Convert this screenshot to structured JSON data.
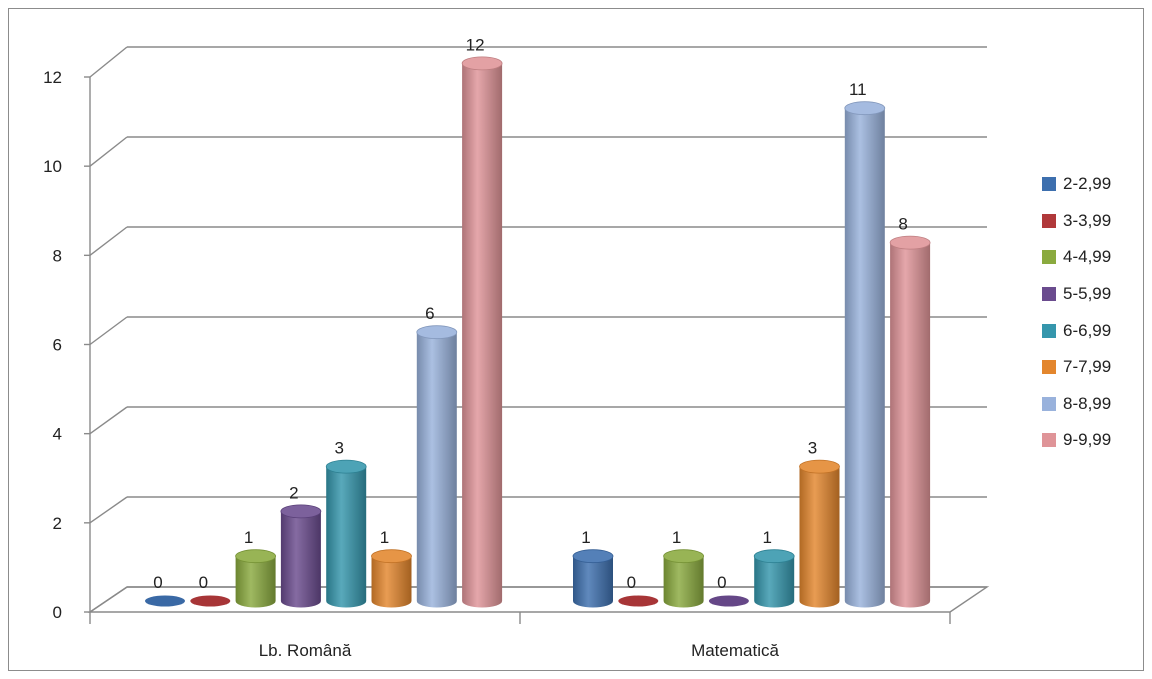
{
  "chart_data": {
    "type": "bar",
    "style": "3d-cylinder",
    "categories": [
      "Lb. Română",
      "Matematică"
    ],
    "series": [
      {
        "name": "2-2,99",
        "color": "#3d6fae",
        "values": [
          0,
          1
        ]
      },
      {
        "name": "3-3,99",
        "color": "#b0383a",
        "values": [
          0,
          0
        ]
      },
      {
        "name": "4-4,99",
        "color": "#8aaa3e",
        "values": [
          1,
          1
        ]
      },
      {
        "name": "5-5,99",
        "color": "#6a4b8e",
        "values": [
          2,
          0
        ]
      },
      {
        "name": "6-6,99",
        "color": "#3596ac",
        "values": [
          3,
          1
        ]
      },
      {
        "name": "7-7,99",
        "color": "#e3862d",
        "values": [
          1,
          3
        ]
      },
      {
        "name": "8-8,99",
        "color": "#99b2dc",
        "values": [
          6,
          11
        ]
      },
      {
        "name": "9-9,99",
        "color": "#df9498",
        "values": [
          12,
          8
        ]
      }
    ],
    "ylim": [
      0,
      12
    ],
    "yticks": [
      "0",
      "2",
      "4",
      "6",
      "8",
      "10",
      "12"
    ],
    "data_labels": true,
    "grid": true,
    "legend_position": "right"
  }
}
